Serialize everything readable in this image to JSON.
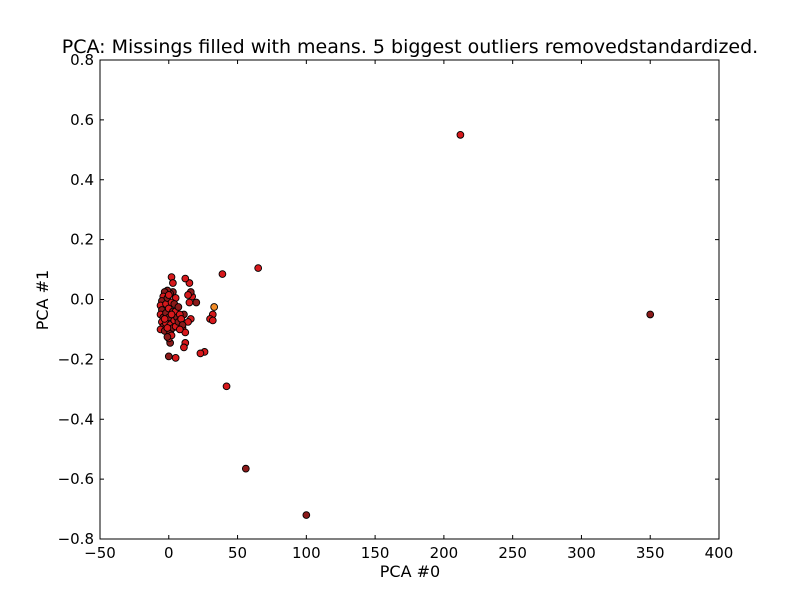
{
  "chart_data": {
    "type": "scatter",
    "title": "PCA: Missings filled with means. 5 biggest outliers removedstandardized.",
    "xlabel": "PCA #0",
    "ylabel": "PCA #1",
    "xlim": [
      -50,
      400
    ],
    "ylim": [
      -0.8,
      0.8
    ],
    "xticks": [
      -50,
      0,
      50,
      100,
      150,
      200,
      250,
      300,
      350,
      400
    ],
    "yticks": [
      -0.8,
      -0.6,
      -0.4,
      -0.2,
      0.0,
      0.2,
      0.4,
      0.6,
      0.8
    ],
    "xtick_labels": [
      "−50",
      "0",
      "50",
      "100",
      "150",
      "200",
      "250",
      "300",
      "350",
      "400"
    ],
    "ytick_labels": [
      "−0.8",
      "−0.6",
      "−0.4",
      "−0.2",
      "0.0",
      "0.2",
      "0.4",
      "0.6",
      "0.8"
    ],
    "grid": false,
    "legend": "none",
    "marker_colors": {
      "red": "#d7191c",
      "dark_red": "#8b1a1a",
      "orange": "#f28c28"
    },
    "points": [
      {
        "x": 212,
        "y": 0.55,
        "c": "red"
      },
      {
        "x": 350,
        "y": -0.05,
        "c": "dark_red"
      },
      {
        "x": 65,
        "y": 0.105,
        "c": "red"
      },
      {
        "x": 39,
        "y": 0.085,
        "c": "red"
      },
      {
        "x": 42,
        "y": -0.29,
        "c": "red"
      },
      {
        "x": 56,
        "y": -0.565,
        "c": "dark_red"
      },
      {
        "x": 100,
        "y": -0.72,
        "c": "dark_red"
      },
      {
        "x": 33,
        "y": -0.025,
        "c": "orange"
      },
      {
        "x": 32,
        "y": -0.05,
        "c": "red"
      },
      {
        "x": 30,
        "y": -0.065,
        "c": "red"
      },
      {
        "x": 32,
        "y": -0.07,
        "c": "red"
      },
      {
        "x": 26,
        "y": -0.175,
        "c": "red"
      },
      {
        "x": 23,
        "y": -0.18,
        "c": "red"
      },
      {
        "x": 20,
        "y": -0.01,
        "c": "dark_red"
      },
      {
        "x": 17,
        "y": 0.01,
        "c": "red"
      },
      {
        "x": 16,
        "y": 0.025,
        "c": "dark_red"
      },
      {
        "x": 15,
        "y": 0.055,
        "c": "red"
      },
      {
        "x": 12,
        "y": 0.07,
        "c": "red"
      },
      {
        "x": 14,
        "y": 0.015,
        "c": "red"
      },
      {
        "x": 15,
        "y": -0.01,
        "c": "red"
      },
      {
        "x": 16,
        "y": -0.065,
        "c": "red"
      },
      {
        "x": 14,
        "y": -0.075,
        "c": "red"
      },
      {
        "x": 11,
        "y": -0.05,
        "c": "dark_red"
      },
      {
        "x": 10,
        "y": -0.095,
        "c": "red"
      },
      {
        "x": 12,
        "y": -0.11,
        "c": "red"
      },
      {
        "x": 12,
        "y": -0.145,
        "c": "red"
      },
      {
        "x": 11,
        "y": -0.16,
        "c": "red"
      },
      {
        "x": 5,
        "y": -0.195,
        "c": "red"
      },
      {
        "x": 0,
        "y": -0.19,
        "c": "dark_red"
      },
      {
        "x": 1,
        "y": -0.145,
        "c": "dark_red"
      },
      {
        "x": 0,
        "y": -0.13,
        "c": "red"
      },
      {
        "x": 2,
        "y": 0.075,
        "c": "red"
      },
      {
        "x": 3,
        "y": 0.055,
        "c": "red"
      },
      {
        "x": 3,
        "y": 0.025,
        "c": "dark_red"
      },
      {
        "x": 5,
        "y": 0.005,
        "c": "red"
      },
      {
        "x": 1,
        "y": 0.02,
        "c": "dark_red"
      },
      {
        "x": -1,
        "y": 0.03,
        "c": "dark_red"
      },
      {
        "x": -3,
        "y": 0.025,
        "c": "dark_red"
      },
      {
        "x": -4,
        "y": 0.01,
        "c": "red"
      },
      {
        "x": -5,
        "y": -0.005,
        "c": "dark_red"
      },
      {
        "x": -6,
        "y": -0.02,
        "c": "red"
      },
      {
        "x": -5,
        "y": -0.035,
        "c": "dark_red"
      },
      {
        "x": -6,
        "y": -0.05,
        "c": "red"
      },
      {
        "x": -4,
        "y": -0.06,
        "c": "dark_red"
      },
      {
        "x": -5,
        "y": -0.075,
        "c": "red"
      },
      {
        "x": -4,
        "y": -0.09,
        "c": "dark_red"
      },
      {
        "x": -6,
        "y": -0.1,
        "c": "red"
      },
      {
        "x": -3,
        "y": -0.105,
        "c": "dark_red"
      },
      {
        "x": -2,
        "y": -0.08,
        "c": "red"
      },
      {
        "x": -2,
        "y": -0.045,
        "c": "dark_red"
      },
      {
        "x": -2,
        "y": -0.015,
        "c": "red"
      },
      {
        "x": -1,
        "y": 0.005,
        "c": "dark_red"
      },
      {
        "x": 0,
        "y": -0.03,
        "c": "red"
      },
      {
        "x": 0,
        "y": -0.06,
        "c": "dark_red"
      },
      {
        "x": 1,
        "y": -0.085,
        "c": "red"
      },
      {
        "x": 1,
        "y": -0.11,
        "c": "dark_red"
      },
      {
        "x": 2,
        "y": -0.12,
        "c": "red"
      },
      {
        "x": 3,
        "y": -0.095,
        "c": "dark_red"
      },
      {
        "x": 4,
        "y": -0.07,
        "c": "red"
      },
      {
        "x": 3,
        "y": -0.04,
        "c": "dark_red"
      },
      {
        "x": 2,
        "y": -0.01,
        "c": "red"
      },
      {
        "x": 4,
        "y": -0.015,
        "c": "dark_red"
      },
      {
        "x": 5,
        "y": -0.04,
        "c": "red"
      },
      {
        "x": 6,
        "y": -0.06,
        "c": "dark_red"
      },
      {
        "x": 5,
        "y": -0.09,
        "c": "red"
      },
      {
        "x": 7,
        "y": -0.075,
        "c": "dark_red"
      },
      {
        "x": 8,
        "y": -0.05,
        "c": "red"
      },
      {
        "x": 7,
        "y": -0.025,
        "c": "dark_red"
      },
      {
        "x": 9,
        "y": -0.065,
        "c": "red"
      },
      {
        "x": 10,
        "y": -0.085,
        "c": "dark_red"
      },
      {
        "x": 8,
        "y": -0.1,
        "c": "red"
      },
      {
        "x": -1,
        "y": -0.095,
        "c": "red"
      },
      {
        "x": 0,
        "y": 0.015,
        "c": "red"
      },
      {
        "x": -3,
        "y": -0.065,
        "c": "red"
      },
      {
        "x": 2,
        "y": -0.05,
        "c": "red"
      },
      {
        "x": -1,
        "y": -0.125,
        "c": "dark_red"
      }
    ]
  }
}
